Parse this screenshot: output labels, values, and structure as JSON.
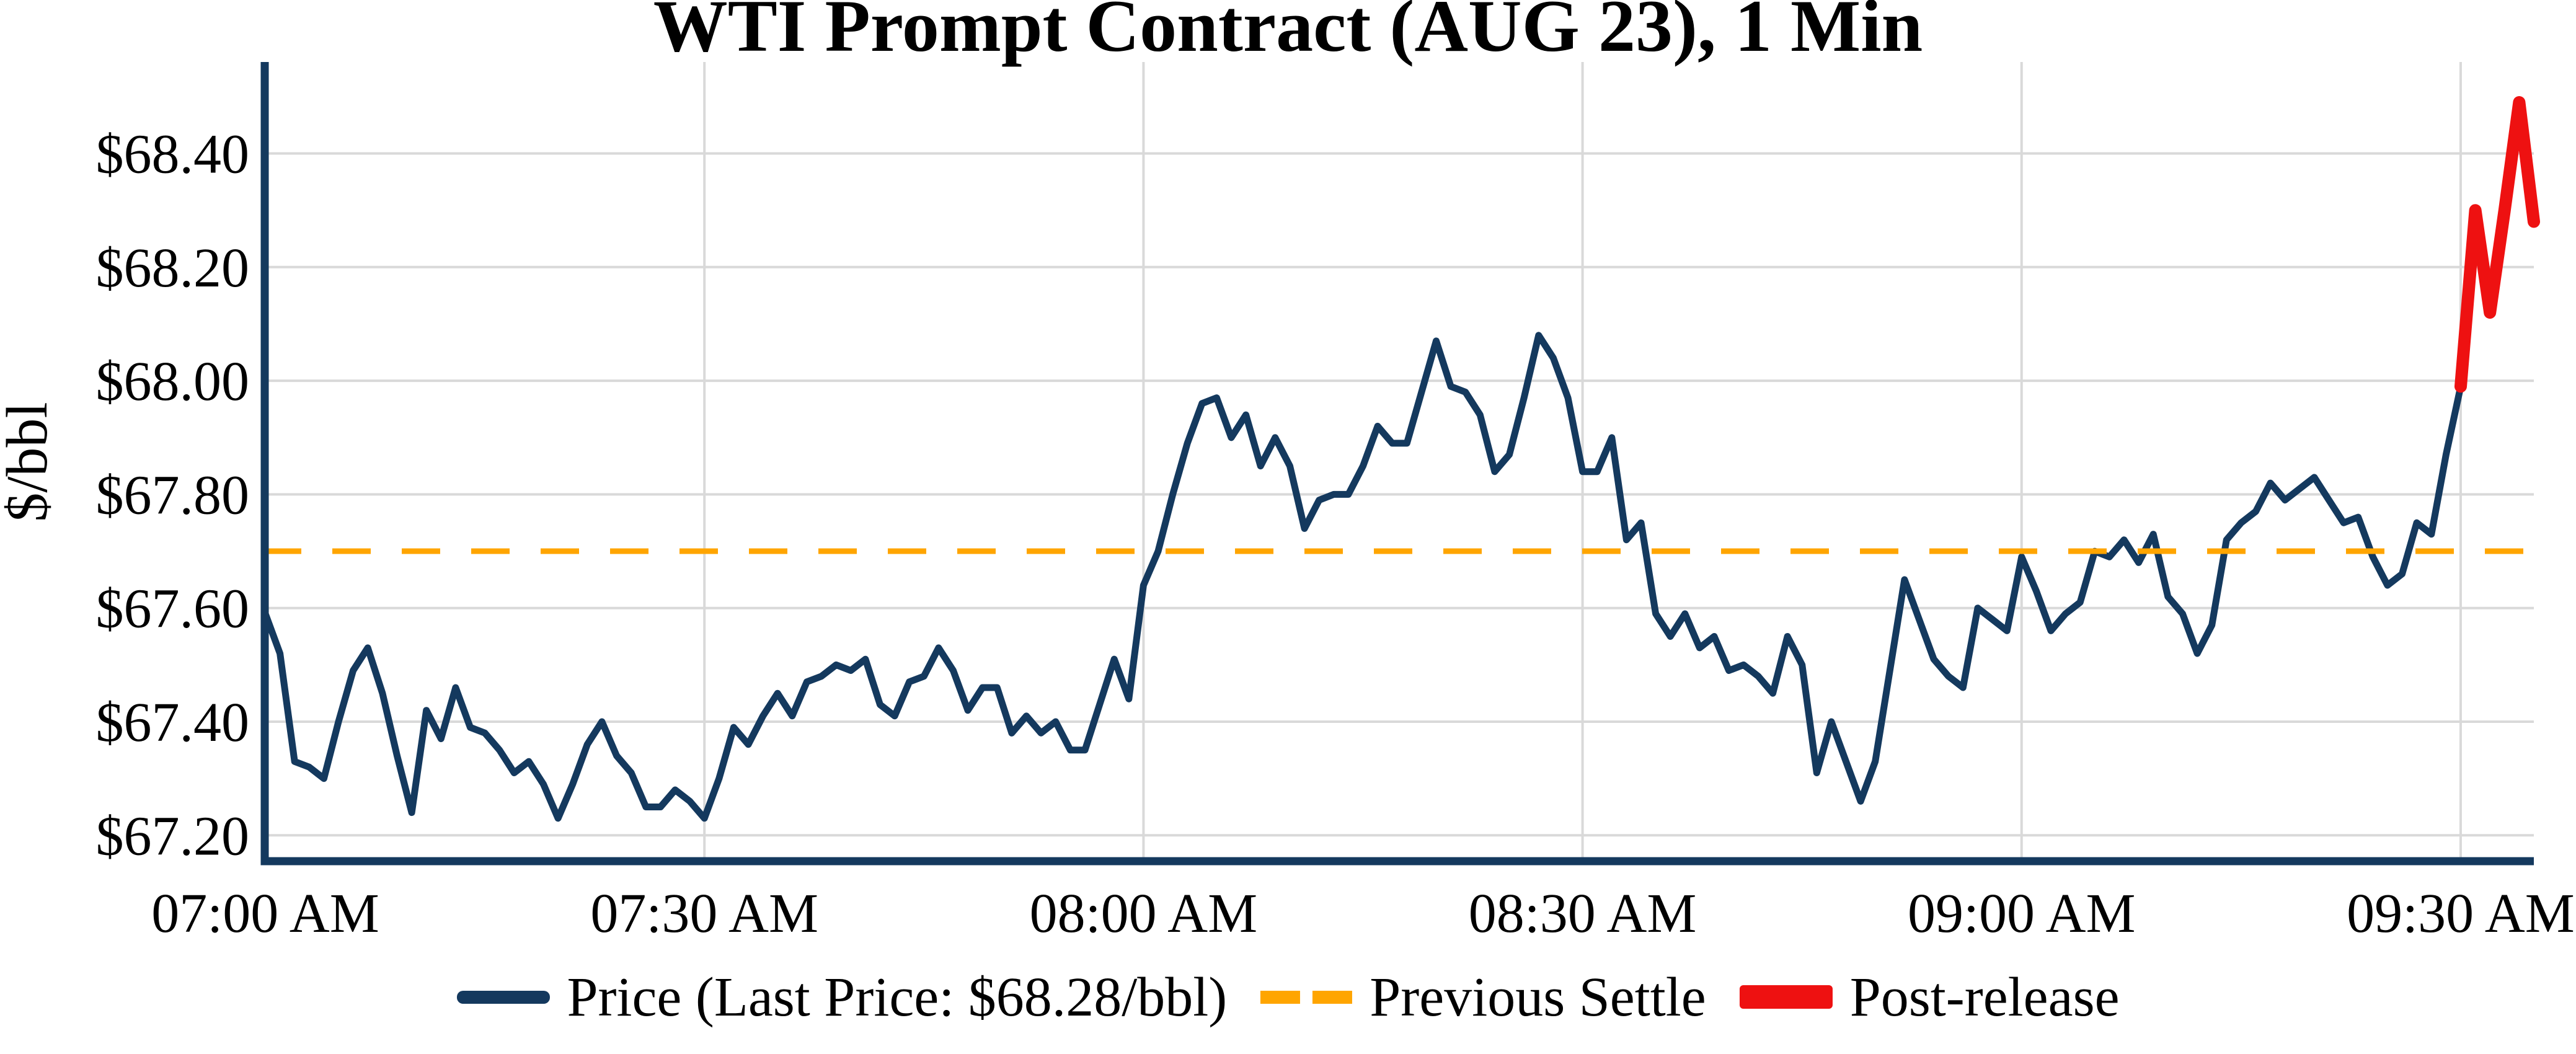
{
  "title": "WTI Prompt Contract (AUG 23), 1 Min",
  "y_axis": {
    "label": "$/bbl"
  },
  "legend": {
    "items": [
      {
        "id": "price",
        "label": "Price (Last Price: $68.28/bbl)"
      },
      {
        "id": "previous_settle",
        "label": "Previous Settle"
      },
      {
        "id": "post_release",
        "label": "Post-release"
      }
    ]
  },
  "colors": {
    "price": "#14395E",
    "previous_settle": "#FFA500",
    "post_release": "#EE1111",
    "grid": "#D9D9D9",
    "spine": "#14395E",
    "text": "#000000",
    "background": "#FFFFFF"
  },
  "chart_data": {
    "type": "line",
    "title": "WTI Prompt Contract (AUG 23), 1 Min",
    "xlabel": "",
    "ylabel": "$/bbl",
    "x_unit": "minutes since 07:00 AM, 1-minute bars",
    "grid": true,
    "legend_position": "bottom-center",
    "xlim_minutes": [
      0,
      155
    ],
    "ylim": [
      67.15,
      68.56
    ],
    "last_price": 68.28,
    "previous_settle": 67.7,
    "x_ticks": {
      "minutes": [
        0,
        30,
        60,
        90,
        120,
        150
      ],
      "labels": [
        "07:00 AM",
        "07:30 AM",
        "08:00 AM",
        "08:30 AM",
        "09:00 AM",
        "09:30 AM"
      ]
    },
    "y_ticks": {
      "values": [
        68.4,
        68.2,
        68.0,
        67.8,
        67.6,
        67.4,
        67.2
      ],
      "labels": [
        "$68.40",
        "$68.20",
        "$68.00",
        "$67.80",
        "$67.60",
        "$67.40",
        "$67.20"
      ]
    },
    "series": [
      {
        "name": "Price (Last Price: $68.28/bbl)",
        "type": "line",
        "color_key": "price",
        "start_minute": 0,
        "step_minutes": 1,
        "values": [
          67.59,
          67.52,
          67.33,
          67.32,
          67.3,
          67.4,
          67.49,
          67.53,
          67.45,
          67.34,
          67.24,
          67.42,
          67.37,
          67.46,
          67.39,
          67.38,
          67.35,
          67.31,
          67.33,
          67.29,
          67.23,
          67.29,
          67.36,
          67.4,
          67.34,
          67.31,
          67.25,
          67.25,
          67.28,
          67.26,
          67.23,
          67.3,
          67.39,
          67.36,
          67.41,
          67.45,
          67.41,
          67.47,
          67.48,
          67.5,
          67.49,
          67.51,
          67.43,
          67.41,
          67.47,
          67.48,
          67.53,
          67.49,
          67.42,
          67.46,
          67.46,
          67.38,
          67.41,
          67.38,
          67.4,
          67.35,
          67.35,
          67.43,
          67.51,
          67.44,
          67.64,
          67.7,
          67.8,
          67.89,
          67.96,
          67.97,
          67.9,
          67.94,
          67.85,
          67.9,
          67.85,
          67.74,
          67.79,
          67.8,
          67.8,
          67.85,
          67.92,
          67.89,
          67.89,
          67.98,
          68.07,
          67.99,
          67.98,
          67.94,
          67.84,
          67.87,
          67.97,
          68.08,
          68.04,
          67.97,
          67.84,
          67.84,
          67.9,
          67.72,
          67.75,
          67.59,
          67.55,
          67.59,
          67.53,
          67.55,
          67.49,
          67.5,
          67.48,
          67.45,
          67.55,
          67.5,
          67.31,
          67.4,
          67.33,
          67.26,
          67.33,
          67.49,
          67.65,
          67.58,
          67.51,
          67.48,
          67.46,
          67.6,
          67.58,
          67.56,
          67.69,
          67.63,
          67.56,
          67.59,
          67.61,
          67.7,
          67.69,
          67.72,
          67.68,
          67.73,
          67.62,
          67.59,
          67.52,
          67.57,
          67.72,
          67.75,
          67.77,
          67.82,
          67.79,
          67.81,
          67.83,
          67.79,
          67.75,
          67.76,
          67.69,
          67.64,
          67.66,
          67.75,
          67.73,
          67.87,
          67.99
        ]
      },
      {
        "name": "Post-release",
        "type": "line",
        "color_key": "post_release",
        "start_minute": 150,
        "step_minutes": 1,
        "values": [
          67.99,
          68.3,
          68.12,
          68.3,
          68.49,
          68.28
        ]
      },
      {
        "name": "Previous Settle",
        "type": "hline",
        "color_key": "previous_settle",
        "style": "dashed",
        "value": 67.7
      }
    ]
  }
}
